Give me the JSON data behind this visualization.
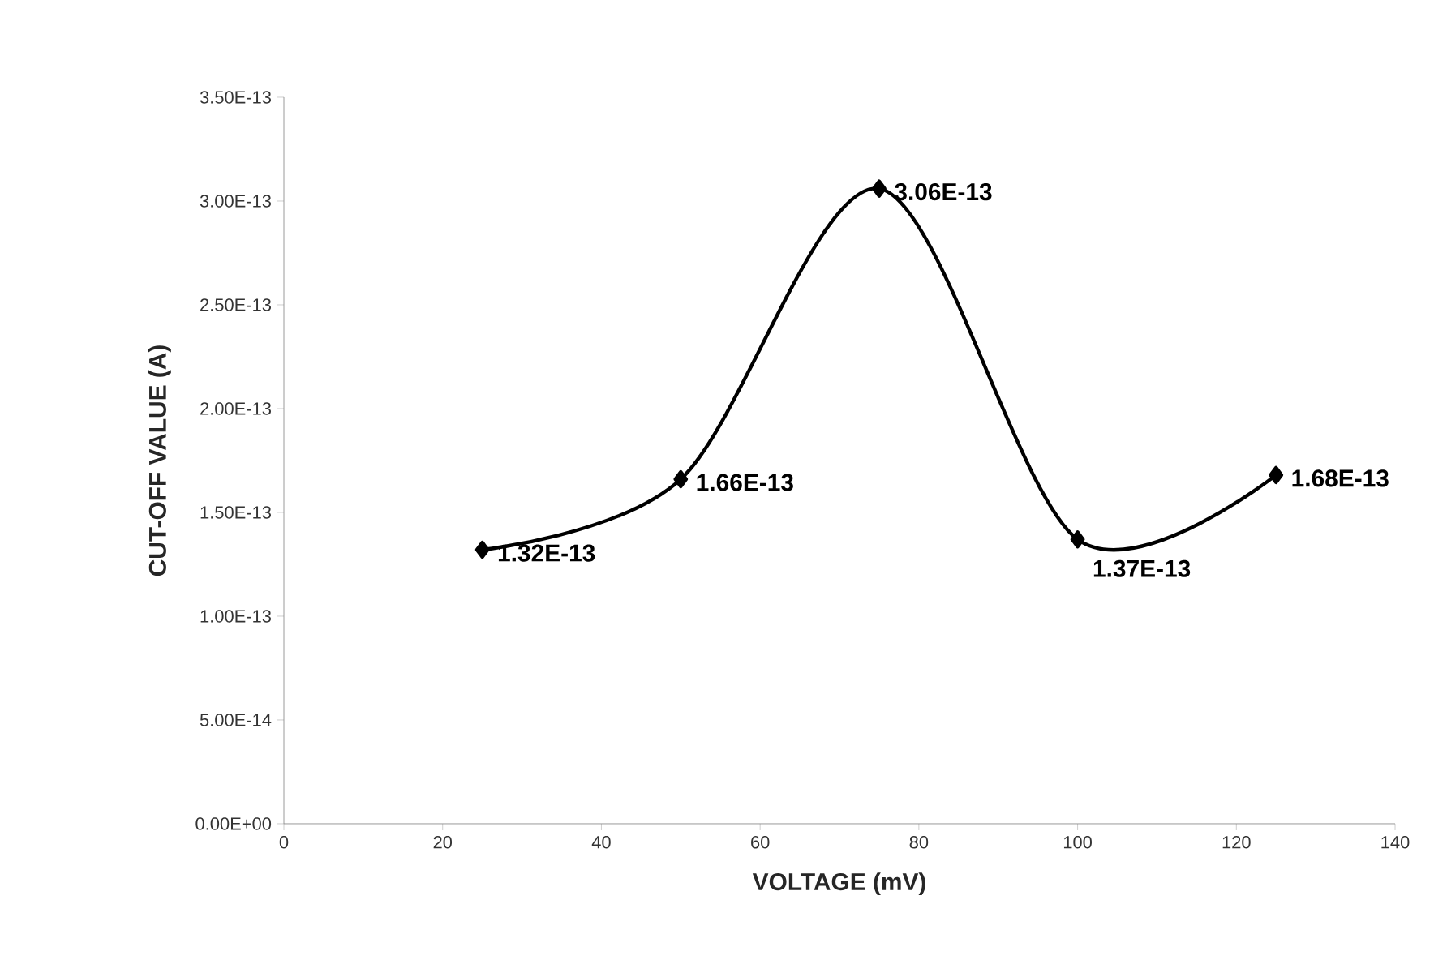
{
  "chart_data": {
    "type": "line",
    "xlabel": "VOLTAGE (mV)",
    "ylabel": "CUT-OFF VALUE (A)",
    "x": [
      25,
      50,
      75,
      100,
      125
    ],
    "values": [
      1.32e-13,
      1.66e-13,
      3.06e-13,
      1.37e-13,
      1.68e-13
    ],
    "value_labels": [
      "1.32E-13",
      "1.66E-13",
      "3.06E-13",
      "1.37E-13",
      "1.68E-13"
    ],
    "color": "#000000",
    "marker": "diamond",
    "line_style": "solid",
    "xlim": [
      0,
      140
    ],
    "xticks": [
      0,
      20,
      40,
      60,
      80,
      100,
      120,
      140
    ],
    "ylim": [
      0,
      3.5e-13
    ],
    "yticks": [
      {
        "value": 0,
        "label": "0.00E+00"
      },
      {
        "value": 5e-14,
        "label": "5.00E-14"
      },
      {
        "value": 1e-13,
        "label": "1.00E-13"
      },
      {
        "value": 1.5e-13,
        "label": "1.50E-13"
      },
      {
        "value": 2e-13,
        "label": "2.00E-13"
      },
      {
        "value": 2.5e-13,
        "label": "2.50E-13"
      },
      {
        "value": 3e-13,
        "label": "3.00E-13"
      },
      {
        "value": 3.5e-13,
        "label": "3.50E-13"
      }
    ]
  }
}
